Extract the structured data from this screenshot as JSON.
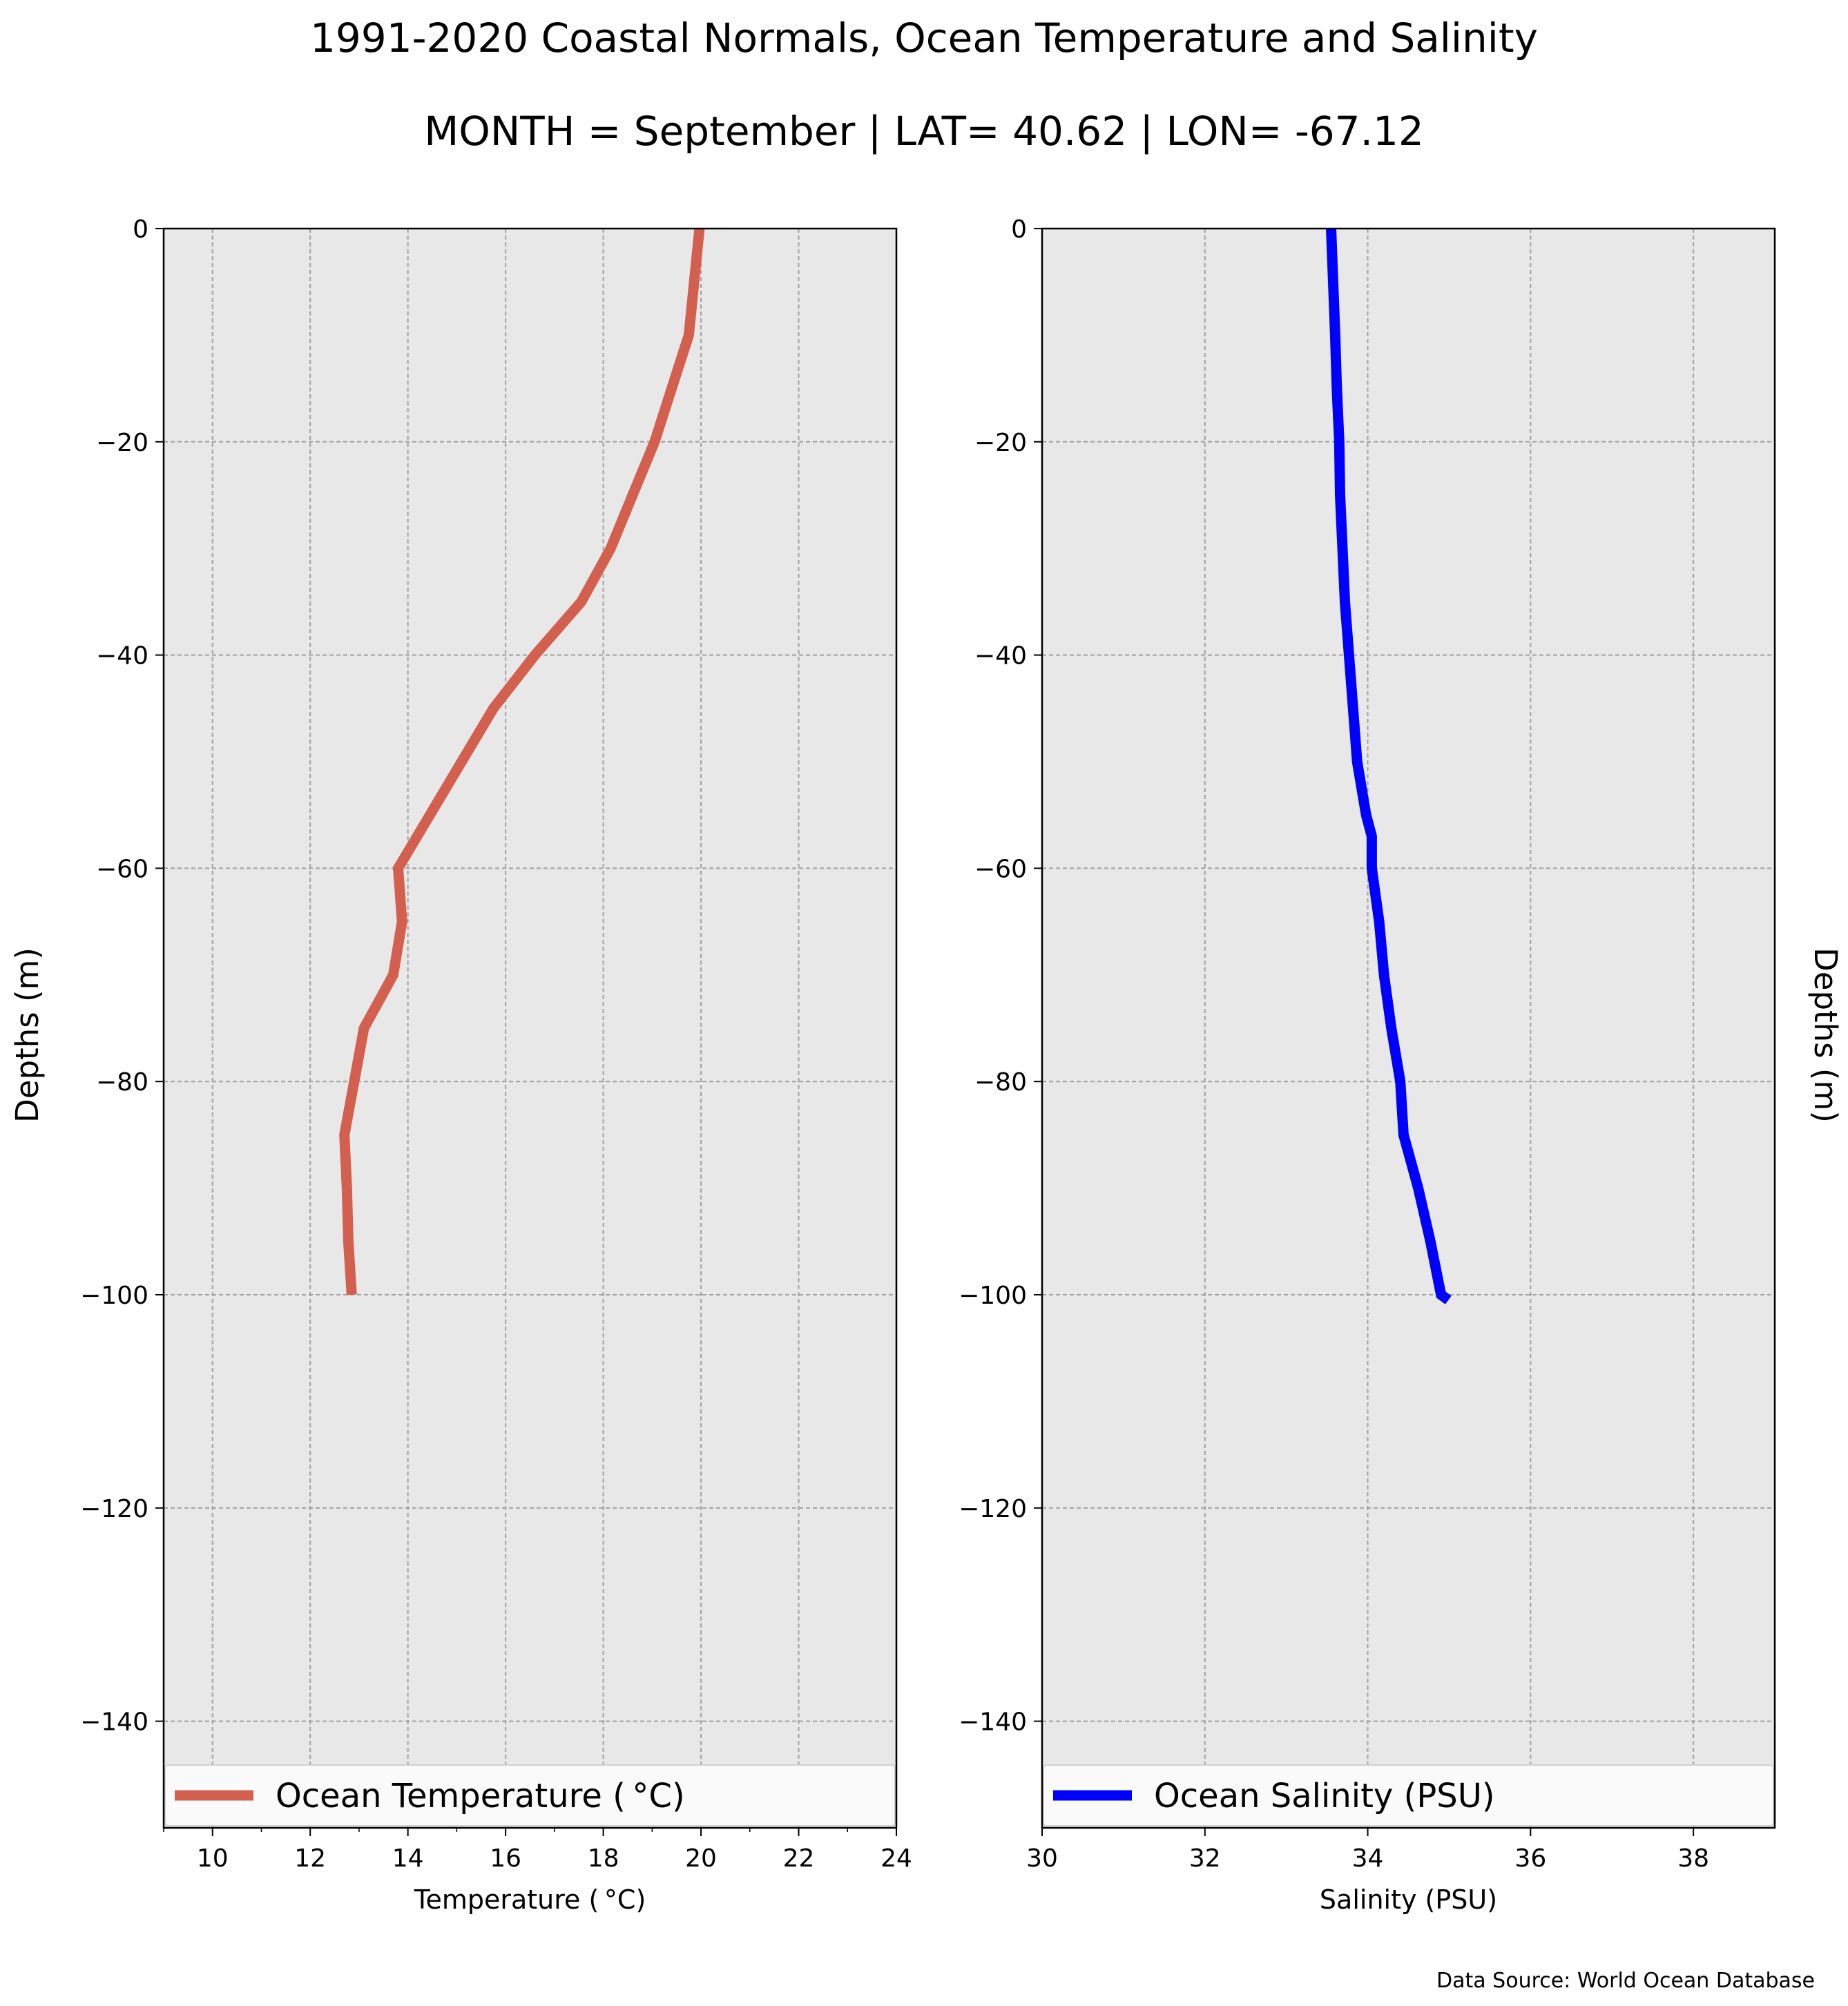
{
  "title": "1991-2020 Coastal Normals, Ocean Temperature and Salinity",
  "subtitle": "MONTH = September | LAT= 40.62 | LON= -67.12",
  "source": "Data Source: World Ocean Database",
  "chart_data": [
    {
      "type": "line",
      "xlabel": "Temperature ($^\\circ$C)",
      "ylabel": "Depths (m)",
      "xlim": [
        9,
        24
      ],
      "ylim": [
        -150,
        0
      ],
      "xticks": [
        10,
        12,
        14,
        16,
        18,
        20,
        22,
        24
      ],
      "xtick_labels": [
        "10",
        "12",
        "14",
        "16",
        "18",
        "20",
        "22",
        "24"
      ],
      "yticks": [
        0,
        -20,
        -40,
        -60,
        -80,
        -100,
        -120,
        -140
      ],
      "ytick_labels": [
        "0",
        "−20",
        "−40",
        "−60",
        "−80",
        "−100",
        "−120",
        "−140"
      ],
      "grid": true,
      "legend_position": "bottom",
      "series": [
        {
          "name": "Ocean Temperature ($^\\circ$C)",
          "color": "#d35f4e",
          "x": [
            19.97,
            19.75,
            19.4,
            19.05,
            18.6,
            18.15,
            17.55,
            16.6,
            15.75,
            15.1,
            14.45,
            13.8,
            13.88,
            13.7,
            13.1,
            12.9,
            12.7,
            12.75,
            12.78,
            12.85
          ],
          "y": [
            0,
            -10,
            -15,
            -20,
            -25,
            -30,
            -35,
            -40,
            -45,
            -50,
            -55,
            -60,
            -65,
            -70,
            -75,
            -80,
            -85,
            -90,
            -95,
            -100
          ]
        }
      ]
    },
    {
      "type": "line",
      "xlabel": "Salinity (PSU)",
      "ylabel": "Depths (m)",
      "xlim": [
        30,
        39
      ],
      "ylim": [
        -150,
        0
      ],
      "xticks": [
        30,
        32,
        34,
        36,
        38
      ],
      "xtick_labels": [
        "30",
        "32",
        "34",
        "36",
        "38"
      ],
      "yticks": [
        0,
        -20,
        -40,
        -60,
        -80,
        -100,
        -120,
        -140
      ],
      "ytick_labels": [
        "0",
        "−20",
        "−40",
        "−60",
        "−80",
        "−100",
        "−120",
        "−140"
      ],
      "grid": true,
      "legend_position": "bottom",
      "series": [
        {
          "name": "Ocean Salinity (PSU)",
          "color": "#0000ff",
          "x": [
            33.55,
            33.6,
            33.62,
            33.65,
            33.66,
            33.69,
            33.72,
            33.77,
            33.82,
            33.87,
            33.98,
            34.05,
            34.05,
            34.14,
            34.2,
            34.29,
            34.4,
            34.44,
            34.62,
            34.77,
            34.9,
            34.99
          ],
          "y": [
            0,
            -10,
            -15,
            -20,
            -25,
            -30,
            -35,
            -40,
            -45,
            -50,
            -55,
            -57,
            -60,
            -65,
            -70,
            -75,
            -80,
            -85,
            -90,
            -95,
            -100,
            -100.5
          ]
        }
      ]
    }
  ]
}
